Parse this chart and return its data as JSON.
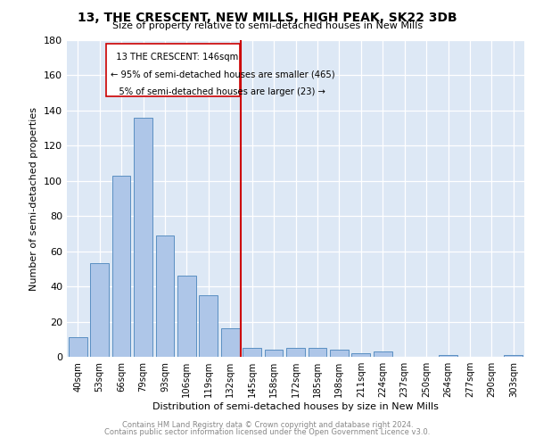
{
  "title1": "13, THE CRESCENT, NEW MILLS, HIGH PEAK, SK22 3DB",
  "title2": "Size of property relative to semi-detached houses in New Mills",
  "xlabel": "Distribution of semi-detached houses by size in New Mills",
  "ylabel": "Number of semi-detached properties",
  "bar_labels": [
    "40sqm",
    "53sqm",
    "66sqm",
    "79sqm",
    "93sqm",
    "106sqm",
    "119sqm",
    "132sqm",
    "145sqm",
    "158sqm",
    "172sqm",
    "185sqm",
    "198sqm",
    "211sqm",
    "224sqm",
    "237sqm",
    "250sqm",
    "264sqm",
    "277sqm",
    "290sqm",
    "303sqm"
  ],
  "bar_values": [
    11,
    53,
    103,
    136,
    69,
    46,
    35,
    16,
    5,
    4,
    5,
    5,
    4,
    2,
    3,
    0,
    0,
    1,
    0,
    0,
    1
  ],
  "bar_color": "#aec6e8",
  "bar_edge_color": "#5a8fc2",
  "property_line_idx": 8,
  "pct_smaller": 95,
  "count_smaller": 465,
  "pct_larger": 5,
  "count_larger": 23,
  "annotation_label": "13 THE CRESCENT: 146sqm",
  "line_color": "#cc0000",
  "box_edge_color": "#cc0000",
  "ylim": [
    0,
    180
  ],
  "yticks": [
    0,
    20,
    40,
    60,
    80,
    100,
    120,
    140,
    160,
    180
  ],
  "bg_color": "#dde8f5",
  "footer1": "Contains HM Land Registry data © Crown copyright and database right 2024.",
  "footer2": "Contains public sector information licensed under the Open Government Licence v3.0."
}
